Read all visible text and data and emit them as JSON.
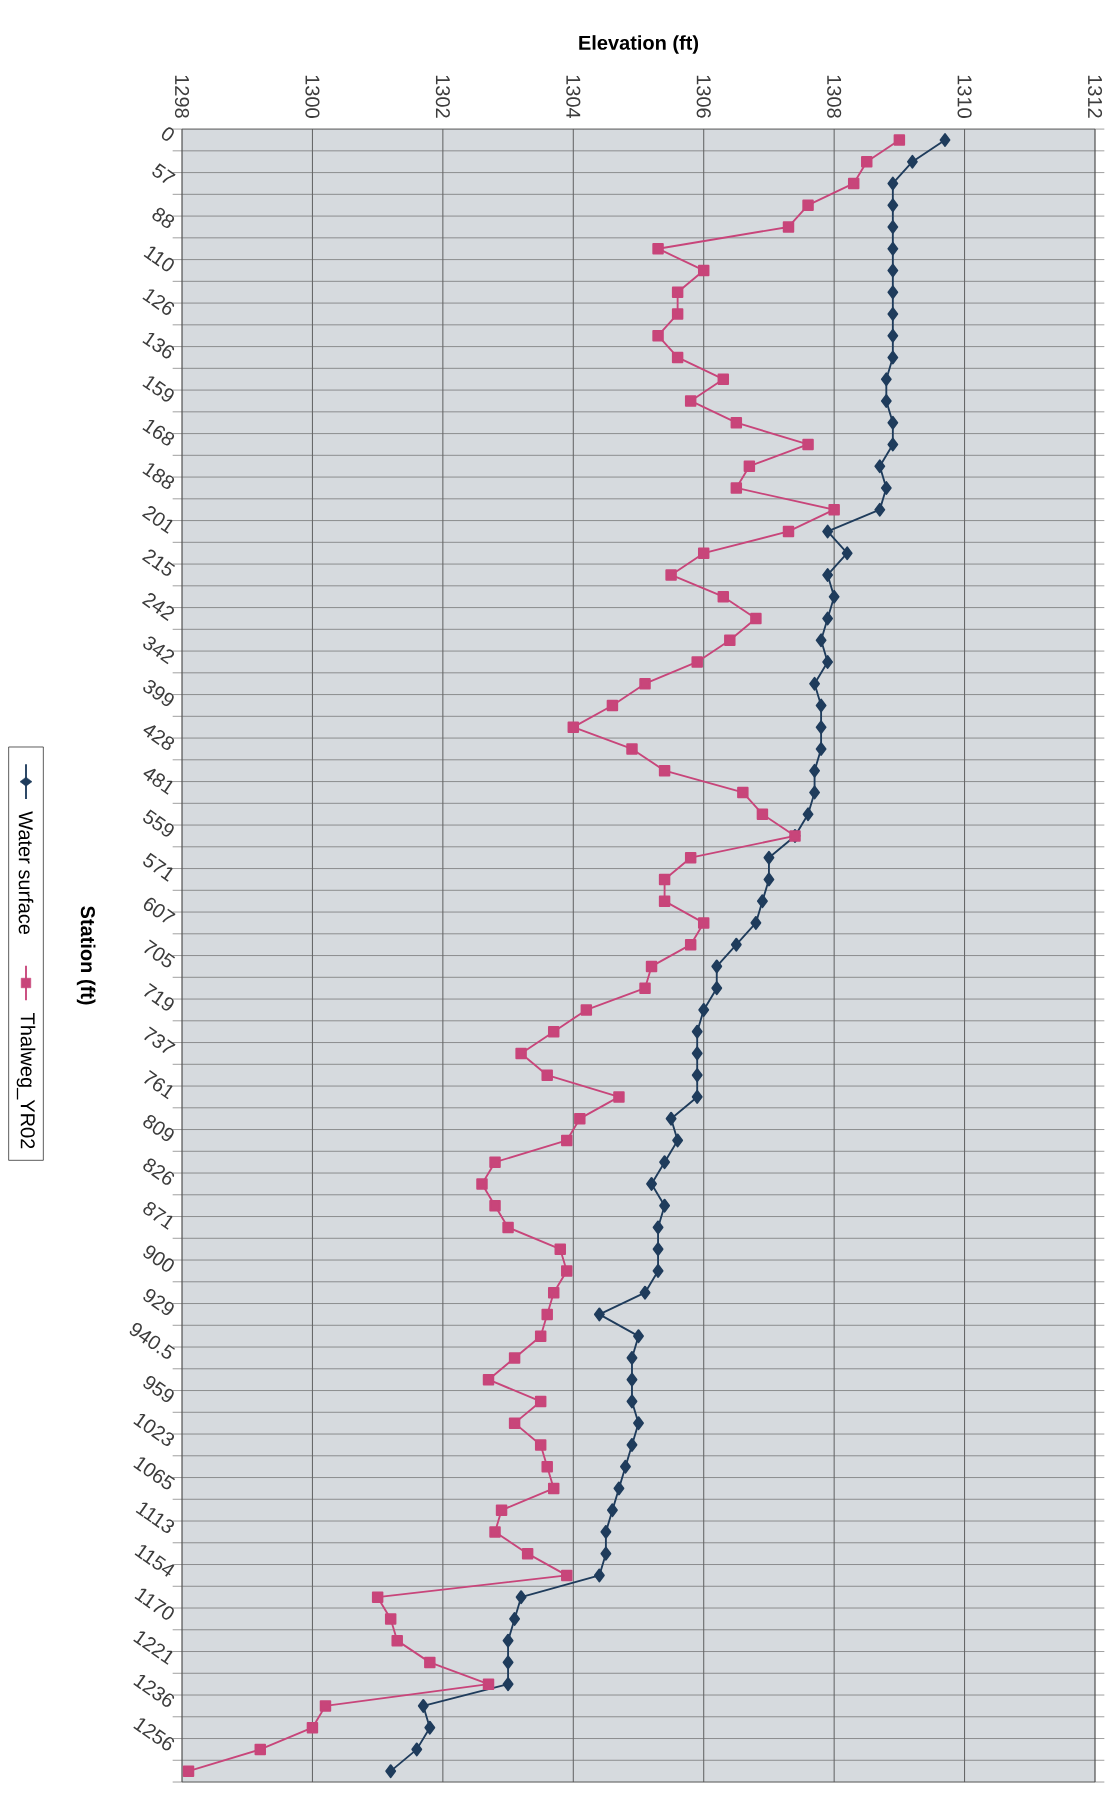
{
  "chart_data": {
    "type": "line",
    "orientation": "horizontal",
    "xlabel": "Elevation (ft)",
    "ylabel": "Station (ft)",
    "categories": [
      "0",
      null,
      "57",
      null,
      "88",
      null,
      "110",
      null,
      "126",
      null,
      "136",
      null,
      "159",
      null,
      "168",
      null,
      "188",
      null,
      "201",
      null,
      "215",
      null,
      "242",
      null,
      "342",
      null,
      "399",
      null,
      "428",
      null,
      "481",
      null,
      "559",
      null,
      "571",
      null,
      "607",
      null,
      "705",
      null,
      "719",
      null,
      "737",
      null,
      "761",
      null,
      "809",
      null,
      "826",
      null,
      "871",
      null,
      "900",
      null,
      "929",
      null,
      "940.5",
      null,
      "959",
      null,
      "1023",
      null,
      "1065",
      null,
      "1113",
      null,
      "1154",
      null,
      "1170",
      null,
      "1221",
      null,
      "1236",
      null,
      "1256",
      null
    ],
    "series": [
      {
        "name": "Water surface",
        "color": "#1f3c5c",
        "marker": "diamond",
        "values": [
          1309.7,
          1309.2,
          1308.9,
          1308.9,
          1308.9,
          1308.9,
          1308.9,
          1308.9,
          1308.9,
          1308.9,
          1308.9,
          1308.8,
          1308.8,
          1308.9,
          1308.9,
          1308.7,
          1308.8,
          1308.7,
          1307.9,
          1308.2,
          1307.9,
          1308.0,
          1307.9,
          1307.8,
          1307.9,
          1307.7,
          1307.8,
          1307.8,
          1307.8,
          1307.7,
          1307.7,
          1307.6,
          1307.4,
          1307.0,
          1307.0,
          1306.9,
          1306.8,
          1306.5,
          1306.2,
          1306.2,
          1306.0,
          1305.9,
          1305.9,
          1305.9,
          1305.9,
          1305.5,
          1305.6,
          1305.4,
          1305.2,
          1305.4,
          1305.3,
          1305.3,
          1305.3,
          1305.1,
          1304.4,
          1305.0,
          1304.9,
          1304.9,
          1304.9,
          1305.0,
          1304.9,
          1304.8,
          1304.7,
          1304.6,
          1304.5,
          1304.5,
          1304.4,
          1303.2,
          1303.1,
          1303.0,
          1303.0,
          1303.0,
          1301.7,
          1301.8,
          1301.6,
          1301.2
        ]
      },
      {
        "name": "Thalweg_YR02",
        "color": "#c8457a",
        "marker": "square",
        "values": [
          1309.0,
          1308.5,
          1308.3,
          1307.6,
          1307.3,
          1305.3,
          1306.0,
          1305.6,
          1305.6,
          1305.3,
          1305.6,
          1306.3,
          1305.8,
          1306.5,
          1307.6,
          1306.7,
          1306.5,
          1308.0,
          1307.3,
          1306.0,
          1305.5,
          1306.3,
          1306.8,
          1306.4,
          1305.9,
          1305.1,
          1304.6,
          1304.0,
          1304.9,
          1305.4,
          1306.6,
          1306.9,
          1307.4,
          1305.8,
          1305.4,
          1305.4,
          1306.0,
          1305.8,
          1305.2,
          1305.1,
          1304.2,
          1303.7,
          1303.2,
          1303.6,
          1304.7,
          1304.1,
          1303.9,
          1302.8,
          1302.6,
          1302.8,
          1303.0,
          1303.8,
          1303.9,
          1303.7,
          1303.6,
          1303.5,
          1303.1,
          1302.7,
          1303.5,
          1303.1,
          1303.5,
          1303.6,
          1303.7,
          1302.9,
          1302.8,
          1303.3,
          1303.9,
          1301.0,
          1301.2,
          1301.3,
          1301.8,
          1302.7,
          1300.2,
          1300.0,
          1299.2,
          1298.1
        ]
      }
    ],
    "xlim": [
      1298,
      1312
    ],
    "xticks": [
      1298,
      1300,
      1302,
      1304,
      1306,
      1308,
      1310,
      1312
    ],
    "grid": true,
    "legend": "left",
    "line_style": "solid"
  }
}
